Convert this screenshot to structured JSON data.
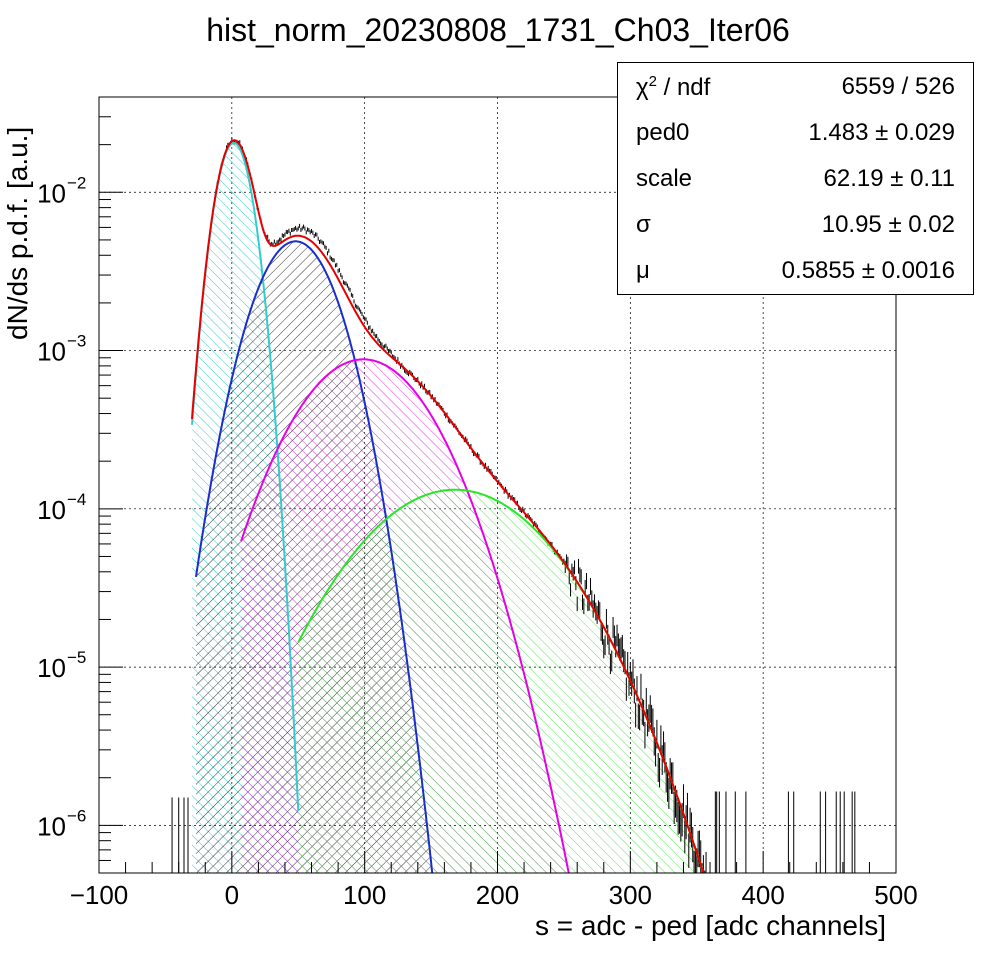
{
  "chart_data": {
    "type": "line",
    "title": "hist_norm_20230808_1731_Ch03_Iter06",
    "xlabel": "s = adc - ped [adc channels]",
    "ylabel": "dN/ds p.d.f. [a.u.]",
    "xlim": [
      -100,
      500
    ],
    "ylim": [
      5e-07,
      0.04
    ],
    "yscale": "log",
    "grid": true,
    "x_ticks": [
      "−100",
      "0",
      "100",
      "200",
      "300",
      "400",
      "500"
    ],
    "y_tick_exponents": [
      "−2",
      "−3",
      "−4",
      "−5",
      "−6"
    ],
    "y_tick_base": "10",
    "stats": {
      "rows": [
        {
          "name_main": "χ",
          "name_sup": "2",
          "name_rest": " / ndf",
          "value": "6559 / 526"
        },
        {
          "name_main": "ped0",
          "name_sup": "",
          "name_rest": "",
          "value": "1.483 ± 0.029"
        },
        {
          "name_main": "scale",
          "name_sup": "",
          "name_rest": "",
          "value": "62.19 ± 0.11"
        },
        {
          "name_main": "σ",
          "name_sup": "",
          "name_rest": "",
          "value": "10.95 ± 0.02"
        },
        {
          "name_main": "μ",
          "name_sup": "",
          "name_rest": "",
          "value": "0.5855 ± 0.0016"
        }
      ]
    },
    "components": [
      {
        "color": "#33cccc",
        "hatch": "cyan",
        "peak_x": 1.5,
        "peak_y": 0.0205,
        "sigma": 11.0,
        "range": [
          -30,
          50
        ]
      },
      {
        "color": "#1a2ecc",
        "hatch": "black",
        "peak_x": 48,
        "peak_y": 0.0049,
        "sigma": 22,
        "range": [
          -27,
          220
        ]
      },
      {
        "color": "#e600e6",
        "hatch": "magenta",
        "peak_x": 99,
        "peak_y": 0.00088,
        "sigma": 38,
        "range": [
          7,
          325
        ]
      },
      {
        "color": "#26e626",
        "hatch": "green",
        "peak_x": 168,
        "peak_y": 0.000132,
        "sigma": 50,
        "range": [
          50,
          400
        ]
      }
    ],
    "total_fit": {
      "color": "#e60000"
    },
    "data_points": {
      "color": "#000000"
    }
  }
}
